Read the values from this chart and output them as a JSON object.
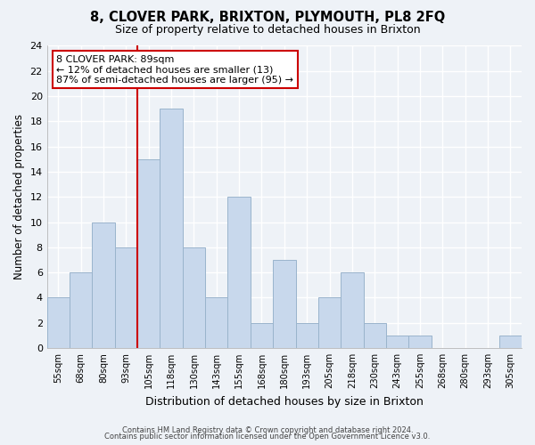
{
  "title": "8, CLOVER PARK, BRIXTON, PLYMOUTH, PL8 2FQ",
  "subtitle": "Size of property relative to detached houses in Brixton",
  "xlabel": "Distribution of detached houses by size in Brixton",
  "ylabel": "Number of detached properties",
  "bar_labels": [
    "55sqm",
    "68sqm",
    "80sqm",
    "93sqm",
    "105sqm",
    "118sqm",
    "130sqm",
    "143sqm",
    "155sqm",
    "168sqm",
    "180sqm",
    "193sqm",
    "205sqm",
    "218sqm",
    "230sqm",
    "243sqm",
    "255sqm",
    "268sqm",
    "280sqm",
    "293sqm",
    "305sqm"
  ],
  "bar_values": [
    4,
    6,
    10,
    8,
    15,
    19,
    8,
    4,
    12,
    2,
    7,
    2,
    4,
    6,
    2,
    1,
    1,
    0,
    0,
    0,
    1
  ],
  "bar_color": "#c8d8ec",
  "bar_edge_color": "#9ab4cc",
  "vline_x_index": 3,
  "vline_color": "#cc0000",
  "ylim": [
    0,
    24
  ],
  "yticks": [
    0,
    2,
    4,
    6,
    8,
    10,
    12,
    14,
    16,
    18,
    20,
    22,
    24
  ],
  "annotation_title": "8 CLOVER PARK: 89sqm",
  "annotation_line1": "← 12% of detached houses are smaller (13)",
  "annotation_line2": "87% of semi-detached houses are larger (95) →",
  "annotation_box_color": "#ffffff",
  "annotation_box_edge": "#cc0000",
  "footer1": "Contains HM Land Registry data © Crown copyright and database right 2024.",
  "footer2": "Contains public sector information licensed under the Open Government Licence v3.0.",
  "background_color": "#eef2f7",
  "grid_color": "#ffffff"
}
